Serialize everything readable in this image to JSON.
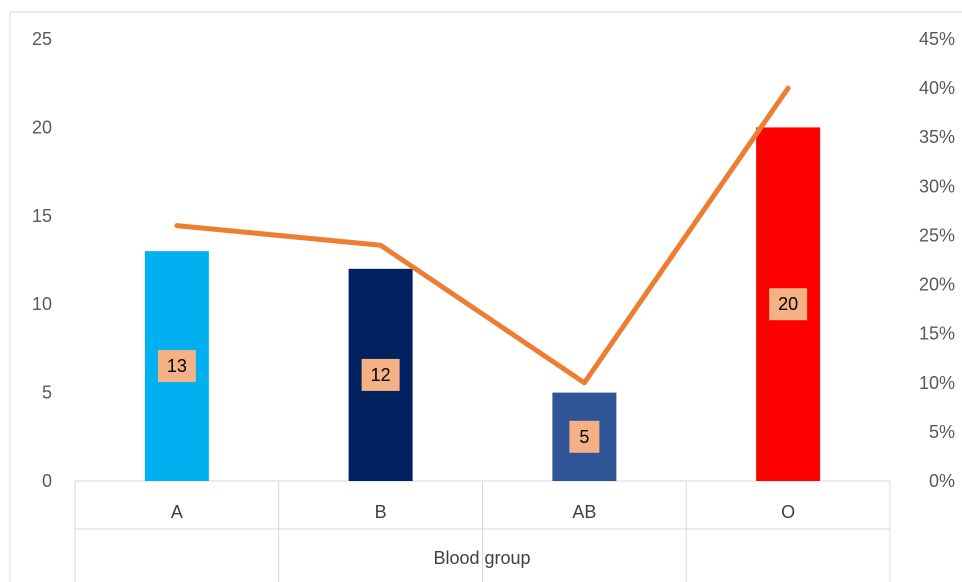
{
  "chart_data": {
    "type": "bar",
    "categories": [
      "A",
      "B",
      "AB",
      "O"
    ],
    "series": [
      {
        "type": "bar",
        "axis": "left",
        "values": [
          13,
          12,
          5,
          20
        ],
        "colors": [
          "#00b0f0",
          "#002060",
          "#2f5597",
          "#ff0000"
        ],
        "data_labels": [
          "13",
          "12",
          "5",
          "20"
        ]
      },
      {
        "type": "line",
        "axis": "right",
        "values": [
          26,
          24,
          10,
          40
        ],
        "color": "#ed7d31"
      }
    ],
    "xlabel": "Blood group",
    "ylim_left": [
      0,
      25
    ],
    "yticks_left": [
      "0",
      "5",
      "10",
      "15",
      "20",
      "25"
    ],
    "ylim_right": [
      0,
      45
    ],
    "yticks_right": [
      "0%",
      "5%",
      "10%",
      "15%",
      "20%",
      "25%",
      "30%",
      "35%",
      "40%",
      "45%"
    ],
    "label_box_color": "#f4b183",
    "grid": false,
    "legend": "none"
  }
}
